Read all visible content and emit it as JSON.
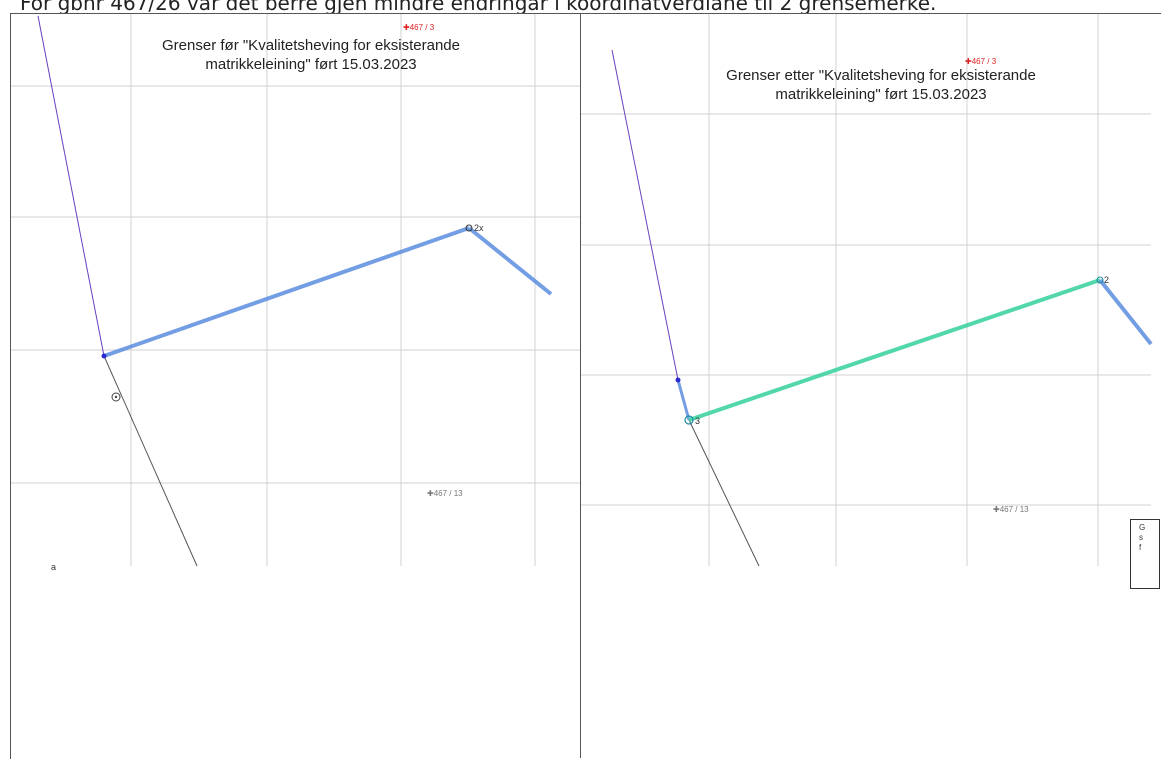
{
  "header": {
    "text": "For gbnr 467/26 var det berre gjen mindre endringar i koordinatverdiane til 2 grensemerke."
  },
  "left_map": {
    "title_line1": "Grenser før \"Kvalitetsheving for eksisterande",
    "title_line2": "matrikkeleining\" ført 15.03.2023",
    "parcel_label_top": "467 / 3",
    "parcel_label_bottom": "467 / 13",
    "point_label": "2x",
    "corner_label": "a"
  },
  "right_map": {
    "title_line1": "Grenser etter \"Kvalitetsheving for eksisterande",
    "title_line2": "matrikkeleining\" ført 15.03.2023",
    "parcel_label_top": "467 / 3",
    "parcel_label_bottom": "467 / 13",
    "point_label": "2",
    "point_label_low": "3",
    "legend_lines": [
      "G",
      "s",
      "f"
    ]
  },
  "colors": {
    "grid": "#d0d0d0",
    "boundary_purple": "#6a3fc0",
    "boundary_blue": "#5b8ee0",
    "boundary_green": "#3fd3a0",
    "boundary_grey": "#555555",
    "marker_red": "#d22222"
  }
}
